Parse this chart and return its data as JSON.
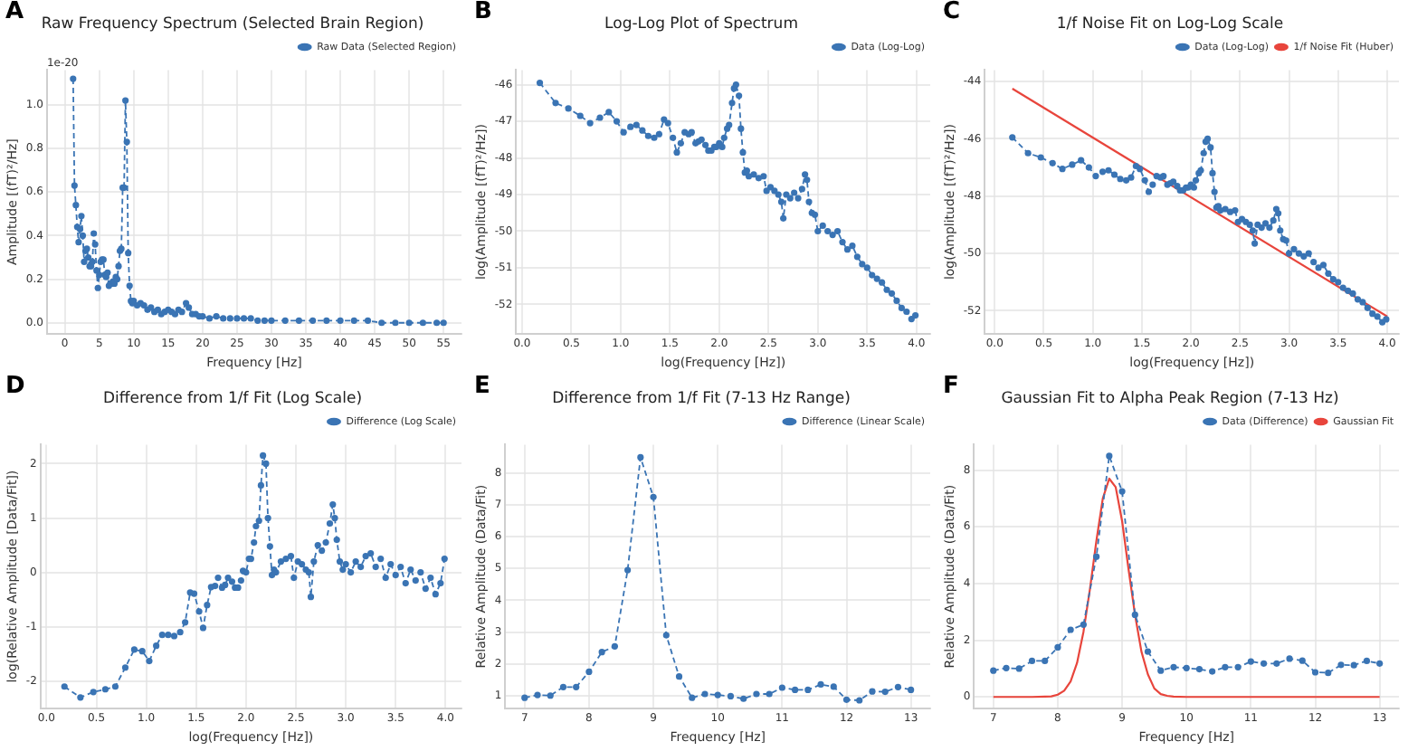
{
  "chart_data": [
    {
      "type": "line",
      "title": "Raw Frequency Spectrum (Selected Brain Region)",
      "xlabel": "Frequency [Hz]",
      "ylabel": "Amplitude [(fT)²/Hz]",
      "annotations": [
        "A",
        "1e-20"
      ],
      "grid": true,
      "legend": "top right",
      "marker": "circle",
      "line_style": "dashed",
      "xlim": [
        -2.6,
        57.6
      ],
      "ylim": [
        -0.05,
        1.16
      ],
      "xticks": [
        0,
        5,
        10,
        15,
        20,
        25,
        30,
        35,
        40,
        45,
        50,
        55
      ],
      "yticks": [
        {
          "value": 0,
          "label": "0.0"
        },
        0.2,
        0.4,
        0.6,
        0.8,
        {
          "value": 1,
          "label": "1.0"
        }
      ],
      "series": [
        {
          "name": "Raw Data (Selected Region)",
          "color": "#3a74b4",
          "x": [
            1.2,
            1.4,
            1.6,
            1.8,
            2.0,
            2.2,
            2.4,
            2.6,
            2.8,
            3.0,
            3.2,
            3.4,
            3.6,
            3.8,
            4.0,
            4.2,
            4.4,
            4.6,
            4.8,
            5.0,
            5.2,
            5.4,
            5.6,
            5.8,
            6.0,
            6.2,
            6.4,
            6.6,
            6.8,
            7.0,
            7.2,
            7.4,
            7.6,
            7.8,
            8.0,
            8.2,
            8.4,
            8.6,
            8.8,
            9.0,
            9.2,
            9.4,
            9.6,
            9.8,
            10.0,
            10.5,
            11,
            11.5,
            12,
            12.5,
            13,
            13.5,
            14,
            14.5,
            15,
            15.5,
            16,
            16.5,
            17,
            17.6,
            18,
            18.5,
            19,
            19.5,
            20,
            21,
            22,
            23,
            24,
            25,
            26,
            27,
            28,
            29,
            30,
            32,
            34,
            36,
            38,
            40,
            42,
            44,
            46,
            48,
            50,
            52,
            54,
            55
          ],
          "values": [
            1.12,
            0.63,
            0.54,
            0.44,
            0.37,
            0.43,
            0.49,
            0.4,
            0.28,
            0.33,
            0.34,
            0.3,
            0.26,
            0.26,
            0.28,
            0.41,
            0.36,
            0.24,
            0.16,
            0.22,
            0.28,
            0.29,
            0.29,
            0.22,
            0.21,
            0.23,
            0.17,
            0.18,
            0.18,
            0.19,
            0.18,
            0.21,
            0.2,
            0.26,
            0.33,
            0.34,
            0.62,
            0.62,
            1.02,
            0.83,
            0.32,
            0.17,
            0.1,
            0.09,
            0.1,
            0.08,
            0.09,
            0.08,
            0.06,
            0.07,
            0.05,
            0.06,
            0.04,
            0.05,
            0.06,
            0.05,
            0.04,
            0.06,
            0.05,
            0.09,
            0.07,
            0.04,
            0.04,
            0.03,
            0.03,
            0.02,
            0.03,
            0.02,
            0.02,
            0.02,
            0.02,
            0.02,
            0.01,
            0.01,
            0.01,
            0.01,
            0.01,
            0.01,
            0.01,
            0.01,
            0.01,
            0.01,
            0.0,
            0.0,
            0.0,
            0.0,
            0.0,
            0.0
          ]
        }
      ]
    },
    {
      "type": "line",
      "title": "Log-Log Plot of Spectrum",
      "xlabel": "log(Frequency [Hz])",
      "ylabel": "log(Amplitude [(fT)²/Hz])",
      "annotations": [
        "B"
      ],
      "grid": true,
      "legend": "top right",
      "marker": "circle",
      "line_style": "dashed",
      "xlim": [
        -0.06,
        4.14
      ],
      "ylim": [
        -52.8,
        -45.6
      ],
      "xticks": [
        {
          "value": 0,
          "label": "0.0"
        },
        0.5,
        {
          "value": 1,
          "label": "1.0"
        },
        1.5,
        {
          "value": 2,
          "label": "2.0"
        },
        2.5,
        {
          "value": 3,
          "label": "3.0"
        },
        3.5,
        {
          "value": 4,
          "label": "4.0"
        }
      ],
      "yticks": [
        -52,
        -51,
        -50,
        -49,
        -48,
        -47,
        -46
      ],
      "series": [
        {
          "name": "Data (Log-Log)",
          "color": "#3a74b4",
          "x": [
            0.18,
            0.34,
            0.47,
            0.59,
            0.69,
            0.79,
            0.88,
            0.96,
            1.03,
            1.1,
            1.16,
            1.22,
            1.28,
            1.34,
            1.39,
            1.44,
            1.48,
            1.53,
            1.57,
            1.61,
            1.65,
            1.69,
            1.72,
            1.76,
            1.79,
            1.82,
            1.86,
            1.89,
            1.92,
            1.95,
            1.97,
            2.0,
            2.03,
            2.05,
            2.08,
            2.1,
            2.13,
            2.15,
            2.17,
            2.2,
            2.22,
            2.24,
            2.26,
            2.28,
            2.3,
            2.35,
            2.4,
            2.45,
            2.48,
            2.52,
            2.56,
            2.6,
            2.63,
            2.65,
            2.68,
            2.72,
            2.76,
            2.8,
            2.84,
            2.87,
            2.89,
            2.91,
            2.94,
            2.97,
            3.0,
            3.05,
            3.1,
            3.15,
            3.2,
            3.25,
            3.3,
            3.35,
            3.4,
            3.45,
            3.5,
            3.55,
            3.6,
            3.65,
            3.7,
            3.75,
            3.8,
            3.85,
            3.9,
            3.95,
            3.99
          ],
          "values": [
            -45.95,
            -46.5,
            -46.65,
            -46.85,
            -47.05,
            -46.9,
            -46.75,
            -47.0,
            -47.3,
            -47.15,
            -47.1,
            -47.25,
            -47.4,
            -47.45,
            -47.35,
            -46.95,
            -47.05,
            -47.45,
            -47.85,
            -47.6,
            -47.3,
            -47.35,
            -47.3,
            -47.6,
            -47.55,
            -47.5,
            -47.65,
            -47.8,
            -47.8,
            -47.7,
            -47.7,
            -47.6,
            -47.7,
            -47.45,
            -47.2,
            -47.1,
            -46.5,
            -46.1,
            -46.0,
            -46.3,
            -47.2,
            -47.85,
            -48.4,
            -48.35,
            -48.5,
            -48.45,
            -48.55,
            -48.5,
            -48.9,
            -48.8,
            -48.9,
            -49.0,
            -49.2,
            -49.65,
            -49.0,
            -49.1,
            -48.95,
            -49.1,
            -48.85,
            -48.45,
            -48.6,
            -49.2,
            -49.5,
            -49.55,
            -50.0,
            -49.85,
            -50.0,
            -50.1,
            -50.0,
            -50.3,
            -50.5,
            -50.4,
            -50.7,
            -50.9,
            -51.0,
            -51.2,
            -51.3,
            -51.4,
            -51.6,
            -51.7,
            -51.9,
            -52.1,
            -52.2,
            -52.4,
            -52.3
          ]
        }
      ]
    },
    {
      "type": "line",
      "title": "1/f Noise Fit on Log-Log Scale",
      "xlabel": "log(Frequency [Hz])",
      "ylabel": "log(Amplitude [(fT)²/Hz])",
      "annotations": [
        "C"
      ],
      "grid": true,
      "legend": "top right",
      "marker": "circle",
      "line_style": "dashed",
      "xlim": [
        -0.1,
        4.12
      ],
      "ylim": [
        -52.8,
        -43.6
      ],
      "xticks": [
        {
          "value": 0,
          "label": "0.0"
        },
        0.5,
        {
          "value": 1,
          "label": "1.0"
        },
        1.5,
        {
          "value": 2,
          "label": "2.0"
        },
        2.5,
        {
          "value": 3,
          "label": "3.0"
        },
        3.5,
        {
          "value": 4,
          "label": "4.0"
        }
      ],
      "yticks": [
        -52,
        -50,
        -48,
        -46,
        -44
      ],
      "series": [
        {
          "name": "Data (Log-Log)",
          "color": "#3a74b4",
          "x": [
            0.18,
            0.34,
            0.47,
            0.59,
            0.69,
            0.79,
            0.88,
            0.96,
            1.03,
            1.1,
            1.16,
            1.22,
            1.28,
            1.34,
            1.39,
            1.44,
            1.48,
            1.53,
            1.57,
            1.61,
            1.65,
            1.69,
            1.72,
            1.76,
            1.79,
            1.82,
            1.86,
            1.89,
            1.92,
            1.95,
            1.97,
            2.0,
            2.03,
            2.05,
            2.08,
            2.1,
            2.13,
            2.15,
            2.17,
            2.2,
            2.22,
            2.24,
            2.26,
            2.28,
            2.3,
            2.35,
            2.4,
            2.45,
            2.48,
            2.52,
            2.56,
            2.6,
            2.63,
            2.65,
            2.68,
            2.72,
            2.76,
            2.8,
            2.84,
            2.87,
            2.89,
            2.91,
            2.94,
            2.97,
            3.0,
            3.05,
            3.1,
            3.15,
            3.2,
            3.25,
            3.3,
            3.35,
            3.4,
            3.45,
            3.5,
            3.55,
            3.6,
            3.65,
            3.7,
            3.75,
            3.8,
            3.85,
            3.9,
            3.95,
            3.99
          ],
          "values": [
            -45.95,
            -46.5,
            -46.65,
            -46.85,
            -47.05,
            -46.9,
            -46.75,
            -47.0,
            -47.3,
            -47.15,
            -47.1,
            -47.25,
            -47.4,
            -47.45,
            -47.35,
            -46.95,
            -47.05,
            -47.45,
            -47.85,
            -47.6,
            -47.3,
            -47.35,
            -47.3,
            -47.6,
            -47.55,
            -47.5,
            -47.65,
            -47.8,
            -47.8,
            -47.7,
            -47.7,
            -47.6,
            -47.7,
            -47.45,
            -47.2,
            -47.1,
            -46.5,
            -46.1,
            -46.0,
            -46.3,
            -47.2,
            -47.85,
            -48.4,
            -48.35,
            -48.5,
            -48.45,
            -48.55,
            -48.5,
            -48.9,
            -48.8,
            -48.9,
            -49.0,
            -49.2,
            -49.65,
            -49.0,
            -49.1,
            -48.95,
            -49.1,
            -48.85,
            -48.45,
            -48.6,
            -49.2,
            -49.5,
            -49.55,
            -50.0,
            -49.85,
            -50.0,
            -50.1,
            -50.0,
            -50.3,
            -50.5,
            -50.4,
            -50.7,
            -50.9,
            -51.0,
            -51.2,
            -51.3,
            -51.4,
            -51.6,
            -51.7,
            -51.9,
            -52.1,
            -52.2,
            -52.4,
            -52.3
          ]
        },
        {
          "name": "1/f Noise Fit (Huber)",
          "color": "#e8453c",
          "type": "line",
          "marker": "none",
          "line_style": "solid",
          "x": [
            0.18,
            4.0
          ],
          "values": [
            -44.25,
            -52.2
          ]
        }
      ]
    },
    {
      "type": "line",
      "title": "Difference from 1/f Fit (Log Scale)",
      "xlabel": "log(Frequency [Hz])",
      "ylabel": "log(Relative Amplitude [Data/Fit])",
      "annotations": [
        "D"
      ],
      "grid": true,
      "legend": "top right",
      "marker": "circle",
      "line_style": "dashed",
      "xlim": [
        -0.06,
        4.16
      ],
      "ylim": [
        -2.5,
        2.35
      ],
      "xticks": [
        {
          "value": 0,
          "label": "0.0"
        },
        0.5,
        {
          "value": 1,
          "label": "1.0"
        },
        1.5,
        {
          "value": 2,
          "label": "2.0"
        },
        2.5,
        {
          "value": 3,
          "label": "3.0"
        },
        3.5,
        {
          "value": 4,
          "label": "4.0"
        }
      ],
      "yticks": [
        -2,
        -1,
        0,
        1,
        2
      ],
      "series": [
        {
          "name": "Difference (Log Scale)",
          "color": "#3a74b4",
          "x": [
            0.18,
            0.34,
            0.47,
            0.59,
            0.69,
            0.79,
            0.88,
            0.96,
            1.03,
            1.1,
            1.16,
            1.22,
            1.28,
            1.34,
            1.39,
            1.44,
            1.48,
            1.53,
            1.57,
            1.61,
            1.65,
            1.69,
            1.72,
            1.76,
            1.79,
            1.82,
            1.86,
            1.89,
            1.92,
            1.95,
            1.97,
            2.0,
            2.03,
            2.05,
            2.08,
            2.1,
            2.13,
            2.15,
            2.17,
            2.2,
            2.22,
            2.24,
            2.26,
            2.28,
            2.3,
            2.35,
            2.4,
            2.45,
            2.48,
            2.52,
            2.56,
            2.6,
            2.63,
            2.65,
            2.68,
            2.72,
            2.76,
            2.8,
            2.84,
            2.87,
            2.89,
            2.91,
            2.94,
            2.97,
            3.0,
            3.05,
            3.1,
            3.15,
            3.2,
            3.25,
            3.3,
            3.35,
            3.4,
            3.45,
            3.5,
            3.55,
            3.6,
            3.65,
            3.7,
            3.75,
            3.8,
            3.85,
            3.9,
            3.95,
            3.99
          ],
          "values": [
            -2.1,
            -2.3,
            -2.2,
            -2.15,
            -2.1,
            -1.75,
            -1.42,
            -1.45,
            -1.63,
            -1.35,
            -1.15,
            -1.15,
            -1.17,
            -1.1,
            -0.92,
            -0.37,
            -0.39,
            -0.72,
            -1.02,
            -0.6,
            -0.27,
            -0.25,
            -0.1,
            -0.28,
            -0.23,
            -0.1,
            -0.17,
            -0.28,
            -0.28,
            -0.15,
            0.03,
            0.0,
            0.25,
            0.25,
            0.55,
            0.85,
            0.95,
            1.6,
            2.15,
            2.0,
            1.0,
            0.48,
            -0.05,
            0.05,
            0.0,
            0.2,
            0.25,
            0.3,
            -0.1,
            0.2,
            0.15,
            0.05,
            0.0,
            -0.45,
            0.2,
            0.5,
            0.4,
            0.55,
            0.9,
            1.25,
            1.0,
            0.6,
            0.2,
            0.05,
            0.15,
            0.0,
            0.2,
            0.1,
            0.3,
            0.35,
            0.1,
            0.25,
            -0.1,
            0.15,
            -0.05,
            0.1,
            -0.2,
            0.05,
            -0.15,
            0.0,
            -0.3,
            -0.1,
            -0.4,
            -0.2,
            0.25
          ]
        }
      ]
    },
    {
      "type": "line",
      "title": "Difference from 1/f Fit (7-13 Hz Range)",
      "xlabel": "Frequency [Hz]",
      "ylabel": "Relative Amplitude (Data/Fit)",
      "annotations": [
        "E"
      ],
      "grid": true,
      "legend": "top right",
      "marker": "circle",
      "line_style": "dashed",
      "xlim": [
        6.7,
        13.3
      ],
      "ylim": [
        0.6,
        8.9
      ],
      "xticks": [
        7,
        8,
        9,
        10,
        11,
        12,
        13
      ],
      "yticks": [
        1,
        2,
        3,
        4,
        5,
        6,
        7,
        8
      ],
      "series": [
        {
          "name": "Difference (Linear Scale)",
          "color": "#3a74b4",
          "x": [
            7.0,
            7.2,
            7.4,
            7.6,
            7.8,
            8.0,
            8.2,
            8.4,
            8.6,
            8.8,
            9.0,
            9.2,
            9.4,
            9.6,
            9.8,
            10.0,
            10.2,
            10.4,
            10.6,
            10.8,
            11.0,
            11.2,
            11.4,
            11.6,
            11.8,
            12.0,
            12.2,
            12.4,
            12.6,
            12.8,
            13.0
          ],
          "values": [
            0.93,
            1.02,
            1.0,
            1.27,
            1.27,
            1.75,
            2.37,
            2.55,
            4.95,
            8.5,
            7.25,
            2.9,
            1.6,
            0.93,
            1.05,
            1.02,
            0.98,
            0.9,
            1.05,
            1.05,
            1.25,
            1.18,
            1.18,
            1.35,
            1.28,
            0.87,
            0.85,
            1.13,
            1.12,
            1.27,
            1.18
          ]
        }
      ]
    },
    {
      "type": "line",
      "title": "Gaussian Fit to Alpha Peak Region (7-13 Hz)",
      "xlabel": "Frequency [Hz]",
      "ylabel": "Relative Amplitude (Data/Fit)",
      "annotations": [
        "F"
      ],
      "grid": true,
      "legend": "top right",
      "marker": "circle",
      "line_style": "dashed",
      "xlim": [
        6.7,
        13.3
      ],
      "ylim": [
        -0.4,
        8.9
      ],
      "xticks": [
        7,
        8,
        9,
        10,
        11,
        12,
        13
      ],
      "yticks": [
        0,
        2,
        4,
        6,
        8
      ],
      "series": [
        {
          "name": "Data (Difference)",
          "color": "#3a74b4",
          "x": [
            7.0,
            7.2,
            7.4,
            7.6,
            7.8,
            8.0,
            8.2,
            8.4,
            8.6,
            8.8,
            9.0,
            9.2,
            9.4,
            9.6,
            9.8,
            10.0,
            10.2,
            10.4,
            10.6,
            10.8,
            11.0,
            11.2,
            11.4,
            11.6,
            11.8,
            12.0,
            12.2,
            12.4,
            12.6,
            12.8,
            13.0
          ],
          "values": [
            0.93,
            1.02,
            1.0,
            1.27,
            1.27,
            1.75,
            2.37,
            2.55,
            4.95,
            8.5,
            7.25,
            2.9,
            1.6,
            0.93,
            1.05,
            1.02,
            0.98,
            0.9,
            1.05,
            1.05,
            1.25,
            1.18,
            1.18,
            1.35,
            1.28,
            0.87,
            0.85,
            1.13,
            1.12,
            1.27,
            1.18
          ]
        },
        {
          "name": "Gaussian Fit",
          "color": "#e8453c",
          "type": "line",
          "marker": "none",
          "line_style": "solid",
          "x": [
            7.0,
            7.6,
            7.8,
            7.9,
            8.0,
            8.1,
            8.2,
            8.3,
            8.4,
            8.5,
            8.6,
            8.7,
            8.8,
            8.9,
            9.0,
            9.1,
            9.2,
            9.3,
            9.4,
            9.5,
            9.6,
            9.7,
            9.8,
            10.0,
            13.0
          ],
          "values": [
            0,
            0,
            0.01,
            0.02,
            0.08,
            0.22,
            0.55,
            1.2,
            2.3,
            3.8,
            5.5,
            7.0,
            7.7,
            7.4,
            6.2,
            4.5,
            2.9,
            1.6,
            0.8,
            0.3,
            0.1,
            0.04,
            0.01,
            0,
            0
          ]
        }
      ]
    }
  ]
}
